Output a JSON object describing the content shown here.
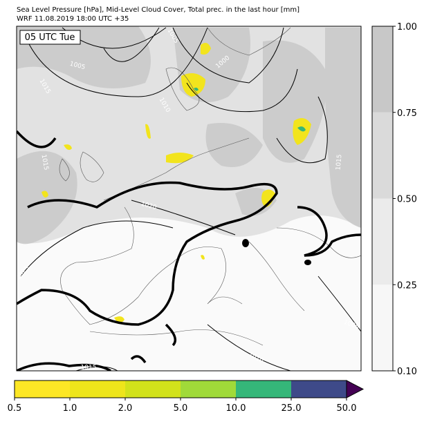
{
  "header": {
    "title_lines": [
      "Sea Level Pressure [hPa], Mid-Level Cloud Cover, Total prec. in the last hour [mm]",
      "WRF 11.08.2019 18:00 UTC +35"
    ]
  },
  "time_label": "05 UTC Tue",
  "contour_labels": [
    "1005",
    "1005",
    "1000",
    "1015",
    "1010",
    "1015",
    "1015",
    "1020",
    "1025",
    "1005",
    "1010",
    "1015"
  ],
  "cloud_colorbar": {
    "ticks": [
      "0.10",
      "0.25",
      "0.50",
      "0.75",
      "1.00"
    ],
    "colors": [
      "#f7f7f7",
      "#ebebeb",
      "#dadada",
      "#c8c8c8"
    ]
  },
  "precip_colorbar": {
    "ticks": [
      "0.5",
      "1.0",
      "2.0",
      "5.0",
      "10.0",
      "25.0",
      "50.0"
    ],
    "colors": [
      "#fde725",
      "#eee51b",
      "#d2e21b",
      "#a0da39",
      "#35b779",
      "#3e4a89"
    ],
    "extend_color": "#440154"
  }
}
